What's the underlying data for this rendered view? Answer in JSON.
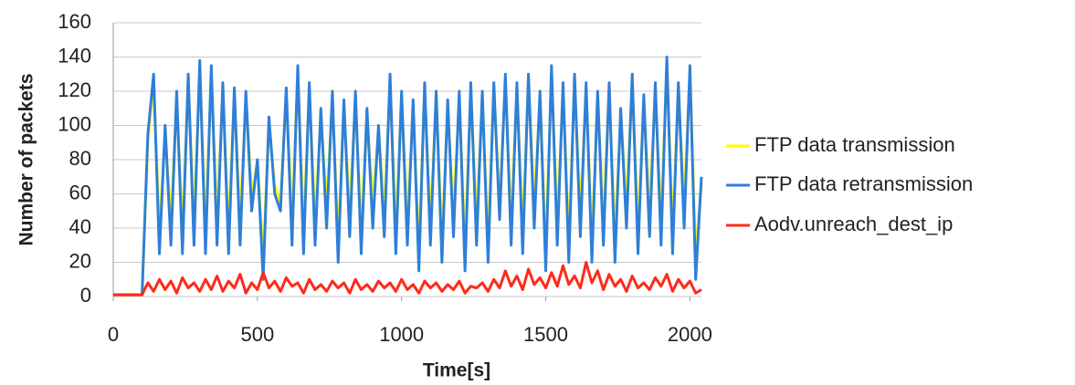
{
  "chart_data": {
    "type": "line",
    "xlabel": "Time[s]",
    "ylabel": "Number of packets",
    "xlim": [
      0,
      2040
    ],
    "ylim": [
      0,
      160
    ],
    "xticks": [
      0,
      500,
      1000,
      1500,
      2000
    ],
    "yticks": [
      0,
      20,
      40,
      60,
      80,
      100,
      120,
      140,
      160
    ],
    "grid": true,
    "legend": "right",
    "x": [
      0,
      20,
      40,
      60,
      80,
      100,
      120,
      140,
      160,
      180,
      200,
      220,
      240,
      260,
      280,
      300,
      320,
      340,
      360,
      380,
      400,
      420,
      440,
      460,
      480,
      500,
      520,
      540,
      560,
      580,
      600,
      620,
      640,
      660,
      680,
      700,
      720,
      740,
      760,
      780,
      800,
      820,
      840,
      860,
      880,
      900,
      920,
      940,
      960,
      980,
      1000,
      1020,
      1040,
      1060,
      1080,
      1100,
      1120,
      1140,
      1160,
      1180,
      1200,
      1220,
      1240,
      1260,
      1280,
      1300,
      1320,
      1340,
      1360,
      1380,
      1400,
      1420,
      1440,
      1460,
      1480,
      1500,
      1520,
      1540,
      1560,
      1580,
      1600,
      1620,
      1640,
      1660,
      1680,
      1700,
      1720,
      1740,
      1760,
      1780,
      1800,
      1820,
      1840,
      1860,
      1880,
      1900,
      1920,
      1940,
      1960,
      1980,
      2000,
      2020,
      2040
    ],
    "series": [
      {
        "name": "FTP data transmission",
        "color": "#ffff00",
        "values": [
          1,
          1,
          1,
          1,
          1,
          1,
          90,
          125,
          40,
          95,
          45,
          115,
          40,
          125,
          45,
          130,
          40,
          130,
          45,
          120,
          40,
          118,
          45,
          115,
          60,
          78,
          25,
          100,
          65,
          55,
          118,
          45,
          130,
          40,
          120,
          45,
          105,
          55,
          115,
          35,
          110,
          50,
          115,
          40,
          105,
          55,
          95,
          50,
          125,
          40,
          115,
          45,
          110,
          30,
          120,
          45,
          115,
          35,
          110,
          50,
          115,
          30,
          120,
          45,
          115,
          35,
          120,
          55,
          125,
          45,
          120,
          40,
          125,
          55,
          115,
          30,
          130,
          45,
          120,
          35,
          125,
          50,
          120,
          35,
          115,
          45,
          120,
          35,
          105,
          55,
          125,
          40,
          113,
          50,
          120,
          45,
          135,
          40,
          120,
          55,
          130,
          25,
          65
        ]
      },
      {
        "name": "FTP data retransmission",
        "color": "#2f7fd8",
        "values": [
          1,
          1,
          1,
          1,
          1,
          1,
          95,
          130,
          25,
          100,
          30,
          120,
          25,
          130,
          30,
          138,
          25,
          135,
          30,
          125,
          25,
          122,
          30,
          120,
          50,
          80,
          10,
          105,
          60,
          50,
          122,
          30,
          135,
          25,
          125,
          30,
          110,
          40,
          120,
          20,
          115,
          35,
          120,
          25,
          110,
          40,
          100,
          35,
          130,
          25,
          120,
          30,
          115,
          15,
          125,
          30,
          120,
          20,
          115,
          35,
          120,
          15,
          125,
          30,
          120,
          20,
          125,
          45,
          130,
          30,
          125,
          25,
          130,
          40,
          120,
          15,
          135,
          30,
          125,
          20,
          130,
          35,
          125,
          20,
          120,
          30,
          125,
          20,
          110,
          40,
          130,
          25,
          118,
          35,
          125,
          30,
          140,
          25,
          125,
          40,
          135,
          10,
          70
        ]
      },
      {
        "name": "Aodv.unreach_dest_ip",
        "color": "#ff2a1a",
        "values": [
          1,
          1,
          1,
          1,
          1,
          1,
          8,
          3,
          10,
          4,
          9,
          2,
          11,
          5,
          8,
          3,
          10,
          4,
          12,
          3,
          9,
          5,
          13,
          2,
          8,
          4,
          14,
          5,
          9,
          3,
          11,
          6,
          8,
          2,
          10,
          4,
          7,
          3,
          9,
          5,
          8,
          2,
          10,
          4,
          7,
          3,
          9,
          5,
          8,
          3,
          10,
          4,
          7,
          2,
          9,
          5,
          8,
          3,
          7,
          4,
          9,
          2,
          6,
          5,
          8,
          3,
          10,
          5,
          15,
          6,
          12,
          4,
          16,
          7,
          11,
          5,
          14,
          6,
          18,
          7,
          12,
          5,
          20,
          8,
          15,
          4,
          13,
          6,
          10,
          3,
          12,
          5,
          8,
          4,
          11,
          6,
          13,
          3,
          10,
          5,
          9,
          2,
          4
        ]
      }
    ]
  }
}
